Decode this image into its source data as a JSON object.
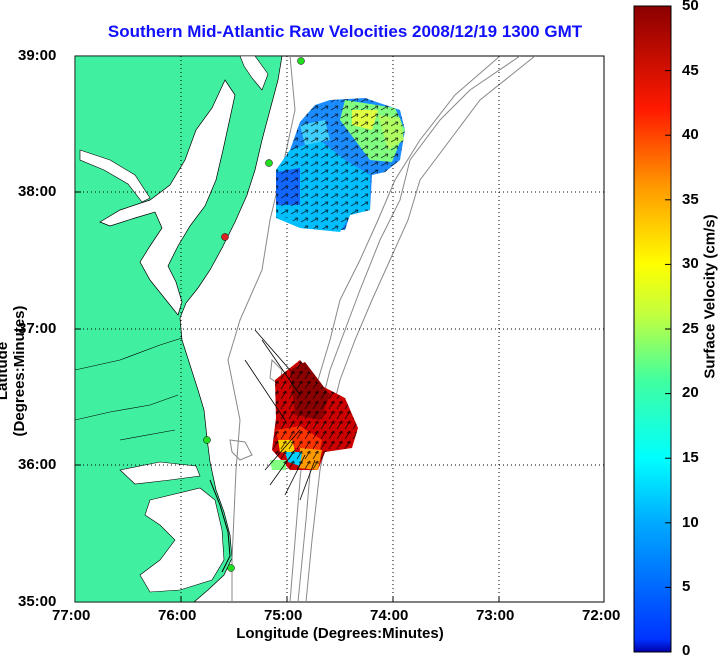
{
  "title": "Southern Mid-Atlantic Raw Velocities 2008/12/19 1300 GMT",
  "x_axis": {
    "label": "Longitude (Degrees:Minutes)",
    "ticks": [
      "77:00",
      "76:00",
      "75:00",
      "74:00",
      "73:00",
      "72:00"
    ]
  },
  "y_axis": {
    "label": "Latitude (Degrees:Minutes)",
    "ticks": [
      "39:00",
      "38:00",
      "37:00",
      "36:00",
      "35:00"
    ]
  },
  "colorbar": {
    "label": "Surface Velocity (cm/s)",
    "ticks": [
      "50",
      "45",
      "40",
      "35",
      "30",
      "25",
      "20",
      "15",
      "10",
      "5",
      "0"
    ],
    "min": 0,
    "max": 50,
    "colormap": "jet"
  },
  "colors": {
    "land": "#40f0a0",
    "title": "#1010ff",
    "station_green": "#22dd22",
    "station_red": "#dd2222"
  },
  "map_extent": {
    "lon": [
      -77,
      -72
    ],
    "lat": [
      35,
      39
    ]
  },
  "stations": [
    {
      "lon": -74.98,
      "lat": 38.98,
      "color": "green"
    },
    {
      "lon": -75.15,
      "lat": 38.22,
      "color": "green"
    },
    {
      "lon": -75.53,
      "lat": 37.71,
      "color": "red"
    },
    {
      "lon": -75.7,
      "lat": 36.18,
      "color": "green"
    },
    {
      "lon": -75.48,
      "lat": 35.24,
      "color": "green"
    }
  ]
}
